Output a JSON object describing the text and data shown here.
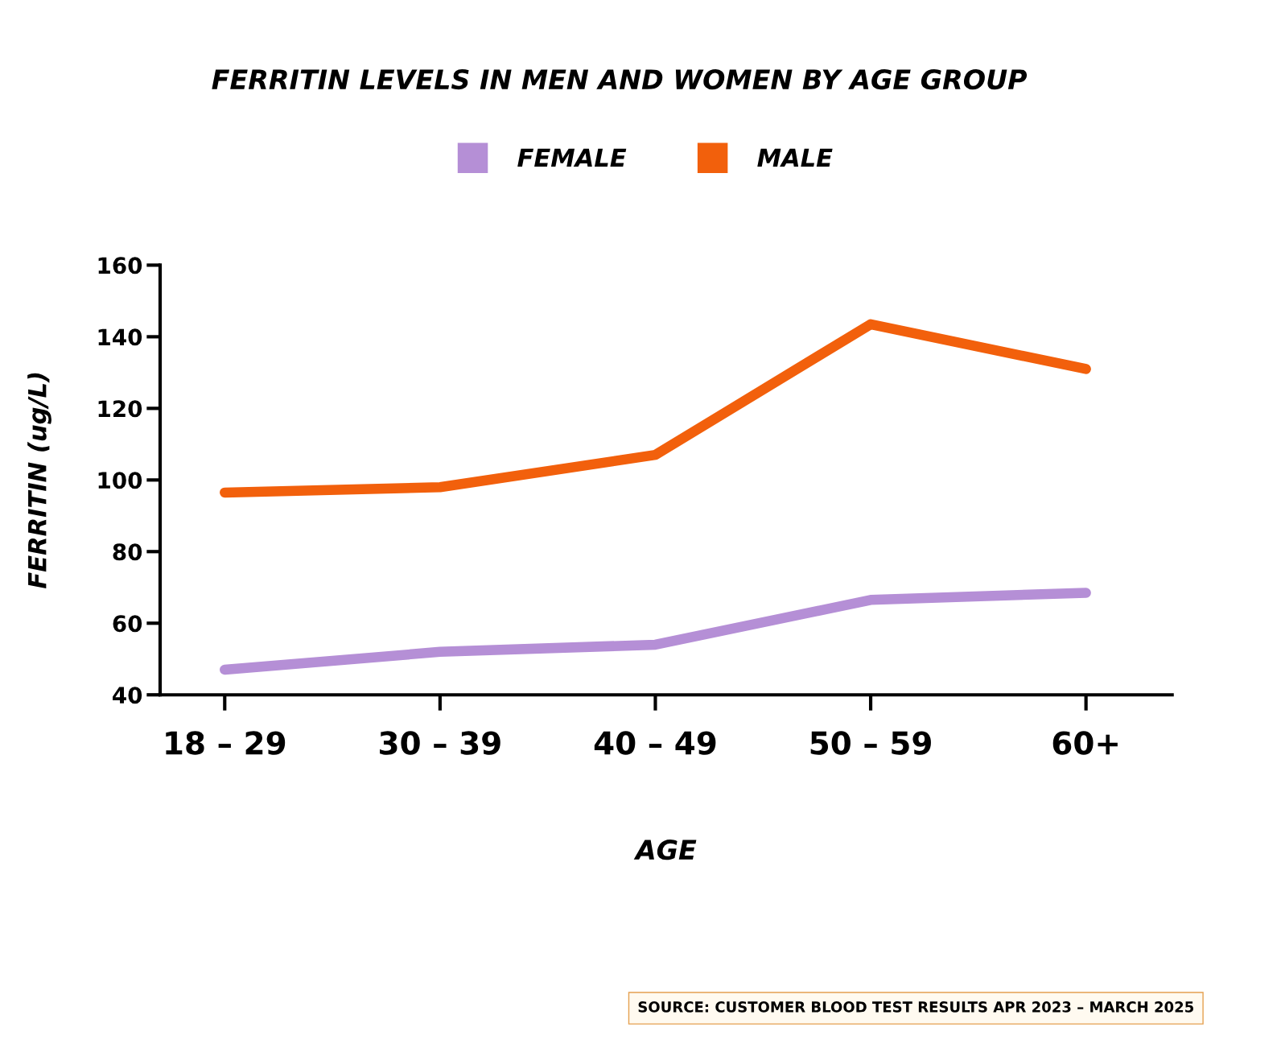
{
  "chart_data": {
    "type": "line",
    "title": "FERRITIN LEVELS IN MEN AND WOMEN BY AGE GROUP",
    "xlabel": "AGE",
    "ylabel": "FERRITIN (ug/L)",
    "categories": [
      "18 – 29",
      "30 – 39",
      "40 – 49",
      "50 – 59",
      "60+"
    ],
    "series": [
      {
        "name": "FEMALE",
        "color": "#b58fd6",
        "values": [
          47,
          52,
          54,
          66.5,
          68.5
        ]
      },
      {
        "name": "MALE",
        "color": "#f2600c",
        "values": [
          96.5,
          98,
          107,
          143.5,
          131
        ]
      }
    ],
    "ylim": [
      40,
      160
    ],
    "yticks": [
      40,
      60,
      80,
      100,
      120,
      140,
      160
    ],
    "grid": false,
    "legend": "top",
    "line_style": "solid",
    "annotations": [
      "SOURCE: CUSTOMER BLOOD TEST RESULTS APR 2023 – MARCH 2025"
    ]
  }
}
